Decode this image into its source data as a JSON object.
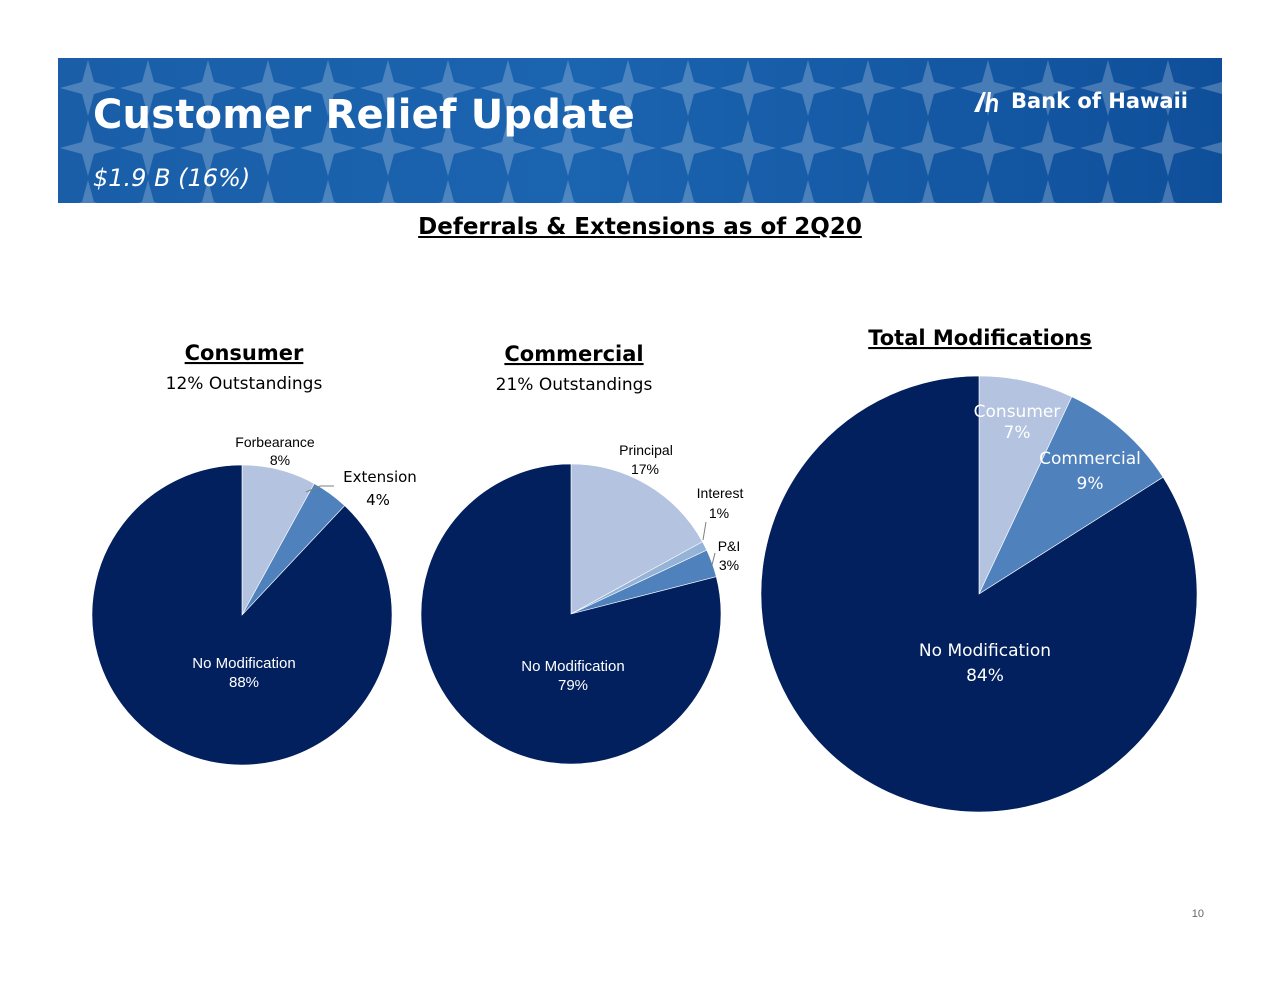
{
  "header": {
    "title": "Customer Relief Update",
    "subtitle": "$1.9 B (16%)",
    "logo_text": "Bank of Hawaii"
  },
  "heading": "Deferrals & Extensions as of 2Q20",
  "page_number": "10",
  "colors": {
    "banner": "#1b64b0",
    "dark_navy": "#03205e",
    "mid_blue": "#4f81bd",
    "light_blue": "#b4c3e0",
    "pale_blue": "#95b3d7"
  },
  "chart_data": [
    {
      "type": "pie",
      "title": "Consumer",
      "subtitle": "12% Outstandings",
      "start_angle": "12 o'clock, clockwise",
      "slices": [
        {
          "label": "Forbearance",
          "value": 8,
          "display": "8%",
          "color": "#b4c3e0"
        },
        {
          "label": "Extension",
          "value": 4,
          "display": "4%",
          "color": "#4f81bd"
        },
        {
          "label": "No Modification",
          "value": 88,
          "display": "88%",
          "color": "#03205e"
        }
      ]
    },
    {
      "type": "pie",
      "title": "Commercial",
      "subtitle": "21% Outstandings",
      "start_angle": "12 o'clock, clockwise",
      "slices": [
        {
          "label": "Principal",
          "value": 17,
          "display": "17%",
          "color": "#b4c3e0"
        },
        {
          "label": "Interest",
          "value": 1,
          "display": "1%",
          "color": "#95b3d7"
        },
        {
          "label": "P&I",
          "value": 3,
          "display": "3%",
          "color": "#4f81bd"
        },
        {
          "label": "No Modification",
          "value": 79,
          "display": "79%",
          "color": "#03205e"
        }
      ]
    },
    {
      "type": "pie",
      "title": "Total Modifications",
      "subtitle": "",
      "start_angle": "12 o'clock, clockwise",
      "slices": [
        {
          "label": "Consumer",
          "value": 7,
          "display": "7%",
          "color": "#b4c3e0"
        },
        {
          "label": "Commercial",
          "value": 9,
          "display": "9%",
          "color": "#4f81bd"
        },
        {
          "label": "No Modification",
          "value": 84,
          "display": "84%",
          "color": "#03205e"
        }
      ]
    }
  ]
}
